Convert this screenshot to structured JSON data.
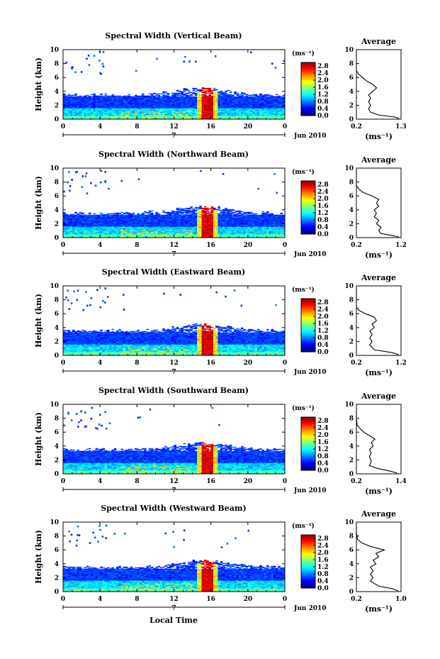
{
  "figure": {
    "bottom_xlabel": "Local Time",
    "panels_title_prefix": "Spectral Width"
  },
  "chart_data": [
    {
      "type": "heatmap",
      "title": "Spectral Width (Vertical Beam)",
      "xlabel": "",
      "ylabel": "Height (km)",
      "xlim": [
        0,
        24
      ],
      "ylim": [
        0,
        10
      ],
      "x_ticks": [
        "0",
        "4",
        "8",
        "12",
        "16",
        "20",
        "0"
      ],
      "y_ticks": [
        "0",
        "2",
        "4",
        "6",
        "8",
        "10"
      ],
      "date_label": "7",
      "date_suffix": "Jun 2010",
      "colorbar": {
        "unit": "(ms⁻¹)",
        "ticks": [
          "0.0",
          "0.4",
          "0.8",
          "1.2",
          "1.6",
          "2.0",
          "2.4",
          "2.8"
        ],
        "range": [
          0.0,
          3.0
        ]
      },
      "profile": {
        "title": "Average",
        "xlabel": "(ms⁻¹)",
        "x_ticks": [
          "0.2",
          "1.3"
        ],
        "xlim": [
          0.2,
          1.3
        ],
        "ylim": [
          0,
          10
        ],
        "y_ticks": [
          "0",
          "2",
          "4",
          "6",
          "8",
          "10"
        ],
        "points": [
          [
            1.25,
            0.1
          ],
          [
            1.15,
            0.3
          ],
          [
            0.75,
            0.6
          ],
          [
            0.55,
            1.0
          ],
          [
            0.5,
            1.5
          ],
          [
            0.55,
            2.0
          ],
          [
            0.5,
            2.5
          ],
          [
            0.55,
            3.0
          ],
          [
            0.5,
            3.5
          ],
          [
            0.6,
            4.0
          ],
          [
            0.7,
            4.5
          ],
          [
            0.6,
            5.0
          ],
          [
            0.45,
            5.5
          ],
          [
            0.35,
            6.0
          ],
          [
            0.25,
            6.5
          ],
          [
            0.2,
            7.0
          ],
          [
            0.2,
            7.5
          ],
          [
            0.2,
            8.5
          ],
          [
            0.2,
            9.5
          ]
        ]
      }
    },
    {
      "type": "heatmap",
      "title": "Spectral Width (Northward Beam)",
      "xlabel": "",
      "ylabel": "Height (km)",
      "xlim": [
        0,
        24
      ],
      "ylim": [
        0,
        10
      ],
      "x_ticks": [
        "0",
        "4",
        "8",
        "12",
        "16",
        "20",
        "0"
      ],
      "y_ticks": [
        "0",
        "2",
        "4",
        "6",
        "8",
        "10"
      ],
      "date_label": "7",
      "date_suffix": "Jun 2010",
      "colorbar": {
        "unit": "(ms⁻¹)",
        "ticks": [
          "0.0",
          "0.4",
          "0.8",
          "1.2",
          "1.6",
          "2.0",
          "2.4",
          "2.8"
        ],
        "range": [
          0.0,
          3.0
        ]
      },
      "profile": {
        "title": "Average",
        "xlabel": "(ms⁻¹)",
        "x_ticks": [
          "0.2",
          "1.2"
        ],
        "xlim": [
          0.2,
          1.2
        ],
        "ylim": [
          0,
          10
        ],
        "y_ticks": [
          "0",
          "2",
          "4",
          "6",
          "8",
          "10"
        ],
        "points": [
          [
            1.15,
            0.1
          ],
          [
            1.0,
            0.3
          ],
          [
            0.75,
            0.6
          ],
          [
            0.7,
            1.0
          ],
          [
            0.75,
            1.5
          ],
          [
            0.65,
            2.0
          ],
          [
            0.7,
            2.5
          ],
          [
            0.6,
            3.0
          ],
          [
            0.65,
            3.5
          ],
          [
            0.6,
            4.0
          ],
          [
            0.7,
            4.5
          ],
          [
            0.65,
            5.0
          ],
          [
            0.7,
            5.5
          ],
          [
            0.55,
            6.0
          ],
          [
            0.35,
            6.5
          ],
          [
            0.25,
            7.0
          ],
          [
            0.2,
            7.5
          ],
          [
            0.2,
            8.5
          ],
          [
            0.2,
            9.5
          ]
        ]
      }
    },
    {
      "type": "heatmap",
      "title": "Spectral Width (Eastward Beam)",
      "xlabel": "",
      "ylabel": "Height (km)",
      "xlim": [
        0,
        24
      ],
      "ylim": [
        0,
        10
      ],
      "x_ticks": [
        "0",
        "4",
        "8",
        "12",
        "16",
        "20",
        "0"
      ],
      "y_ticks": [
        "0",
        "2",
        "4",
        "6",
        "8",
        "10"
      ],
      "date_label": "7",
      "date_suffix": "Jun 2010",
      "colorbar": {
        "unit": "(ms⁻¹)",
        "ticks": [
          "0.0",
          "0.4",
          "0.8",
          "1.2",
          "1.6",
          "2.0",
          "2.4",
          "2.8"
        ],
        "range": [
          0.0,
          3.0
        ]
      },
      "profile": {
        "title": "Average",
        "xlabel": "(ms⁻¹)",
        "x_ticks": [
          "0.2",
          "1.2"
        ],
        "xlim": [
          0.2,
          1.2
        ],
        "ylim": [
          0,
          10
        ],
        "y_ticks": [
          "0",
          "2",
          "4",
          "6",
          "8",
          "10"
        ],
        "points": [
          [
            1.15,
            0.1
          ],
          [
            1.0,
            0.4
          ],
          [
            0.6,
            0.8
          ],
          [
            0.5,
            1.5
          ],
          [
            0.55,
            2.0
          ],
          [
            0.5,
            2.5
          ],
          [
            0.55,
            3.0
          ],
          [
            0.5,
            3.5
          ],
          [
            0.6,
            4.0
          ],
          [
            0.55,
            4.5
          ],
          [
            0.65,
            5.0
          ],
          [
            0.6,
            5.5
          ],
          [
            0.4,
            6.0
          ],
          [
            0.25,
            6.5
          ],
          [
            0.2,
            7.0
          ],
          [
            0.2,
            8.0
          ],
          [
            0.2,
            9.5
          ]
        ]
      }
    },
    {
      "type": "heatmap",
      "title": "Spectral Width (Southward Beam)",
      "xlabel": "",
      "ylabel": "Height (km)",
      "xlim": [
        0,
        24
      ],
      "ylim": [
        0,
        10
      ],
      "x_ticks": [
        "0",
        "4",
        "8",
        "12",
        "16",
        "20",
        "0"
      ],
      "y_ticks": [
        "0",
        "2",
        "4",
        "6",
        "8",
        "10"
      ],
      "date_label": "7",
      "date_suffix": "Jun 2010",
      "colorbar": {
        "unit": "(ms⁻¹)",
        "ticks": [
          "0.0",
          "0.4",
          "0.8",
          "1.2",
          "1.6",
          "2.0",
          "2.4",
          "2.8"
        ],
        "range": [
          0.0,
          3.0
        ]
      },
      "profile": {
        "title": "Average",
        "xlabel": "(ms⁻¹)",
        "x_ticks": [
          "0.2",
          "1.4"
        ],
        "xlim": [
          0.2,
          1.4
        ],
        "ylim": [
          0,
          10
        ],
        "y_ticks": [
          "0",
          "2",
          "4",
          "6",
          "8",
          "10"
        ],
        "points": [
          [
            1.3,
            0.1
          ],
          [
            1.1,
            0.4
          ],
          [
            0.75,
            0.8
          ],
          [
            0.55,
            1.2
          ],
          [
            0.6,
            1.8
          ],
          [
            0.55,
            2.5
          ],
          [
            0.6,
            3.0
          ],
          [
            0.55,
            3.5
          ],
          [
            0.65,
            4.0
          ],
          [
            0.6,
            4.5
          ],
          [
            0.7,
            5.0
          ],
          [
            0.55,
            5.5
          ],
          [
            0.4,
            6.0
          ],
          [
            0.3,
            6.5
          ],
          [
            0.22,
            7.0
          ],
          [
            0.2,
            8.0
          ],
          [
            0.2,
            9.5
          ]
        ]
      }
    },
    {
      "type": "heatmap",
      "title": "Spectral Width (Westward Beam)",
      "xlabel": "Local Time",
      "ylabel": "Height (km)",
      "xlim": [
        0,
        24
      ],
      "ylim": [
        0,
        10
      ],
      "x_ticks": [
        "0",
        "4",
        "8",
        "12",
        "16",
        "20",
        "0"
      ],
      "y_ticks": [
        "0",
        "2",
        "4",
        "6",
        "8",
        "10"
      ],
      "date_label": "7",
      "date_suffix": "Jun 2010",
      "colorbar": {
        "unit": "(ms⁻¹)",
        "ticks": [
          "0.0",
          "0.4",
          "0.8",
          "1.2",
          "1.6",
          "2.0",
          "2.4",
          "2.8"
        ],
        "range": [
          0.0,
          3.0
        ]
      },
      "profile": {
        "title": "Average",
        "xlabel": "(ms⁻¹)",
        "x_ticks": [
          "0.2",
          "1.0"
        ],
        "xlim": [
          0.2,
          1.0
        ],
        "ylim": [
          0,
          10
        ],
        "y_ticks": [
          "0",
          "2",
          "4",
          "6",
          "8",
          "10"
        ],
        "points": [
          [
            0.95,
            0.1
          ],
          [
            0.85,
            0.4
          ],
          [
            0.6,
            0.8
          ],
          [
            0.45,
            1.5
          ],
          [
            0.5,
            2.0
          ],
          [
            0.45,
            2.5
          ],
          [
            0.5,
            3.0
          ],
          [
            0.45,
            3.5
          ],
          [
            0.55,
            4.0
          ],
          [
            0.5,
            4.5
          ],
          [
            0.6,
            5.0
          ],
          [
            0.55,
            5.5
          ],
          [
            0.7,
            6.0
          ],
          [
            0.45,
            6.5
          ],
          [
            0.3,
            7.0
          ],
          [
            0.22,
            7.5
          ],
          [
            0.2,
            8.5
          ],
          [
            0.2,
            9.5
          ]
        ]
      }
    }
  ]
}
